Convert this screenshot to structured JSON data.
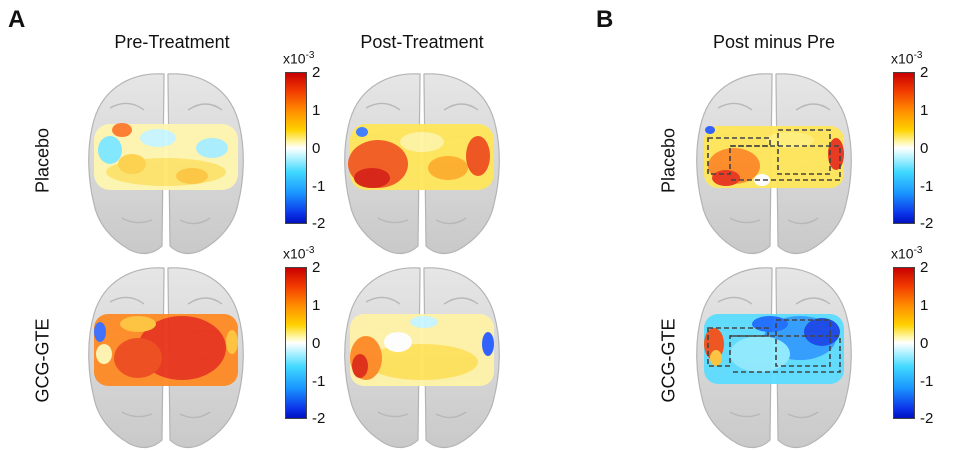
{
  "panels": {
    "A": {
      "letter": "A",
      "col_titles": [
        "Pre-Treatment",
        "Post-Treatment"
      ],
      "row_labels": [
        "Placebo",
        "GCG-GTE"
      ]
    },
    "B": {
      "letter": "B",
      "col_title": "Post minus Pre",
      "row_labels": [
        "Placebo",
        "GCG-GTE"
      ]
    }
  },
  "colorbar": {
    "scale_base": "x10",
    "scale_exp": "-3",
    "ticks": [
      "2",
      "1",
      "0",
      "-1",
      "-2"
    ],
    "colors": {
      "max": "#c80000",
      "high": "#ff8c00",
      "mid_high": "#ffd200",
      "zero": "#ffffff",
      "mid_low": "#40d8ff",
      "low": "#0010c0"
    }
  },
  "maps": [
    {
      "name": "placebo-pre",
      "pattern": "mixed-yellow-cyan"
    },
    {
      "name": "placebo-post",
      "pattern": "yellow-red"
    },
    {
      "name": "gcg-pre",
      "pattern": "red-orange"
    },
    {
      "name": "gcg-post",
      "pattern": "yellow-white"
    },
    {
      "name": "placebo-diff",
      "pattern": "yellow-red-roi"
    },
    {
      "name": "gcg-diff",
      "pattern": "cyan-blue-roi"
    }
  ]
}
